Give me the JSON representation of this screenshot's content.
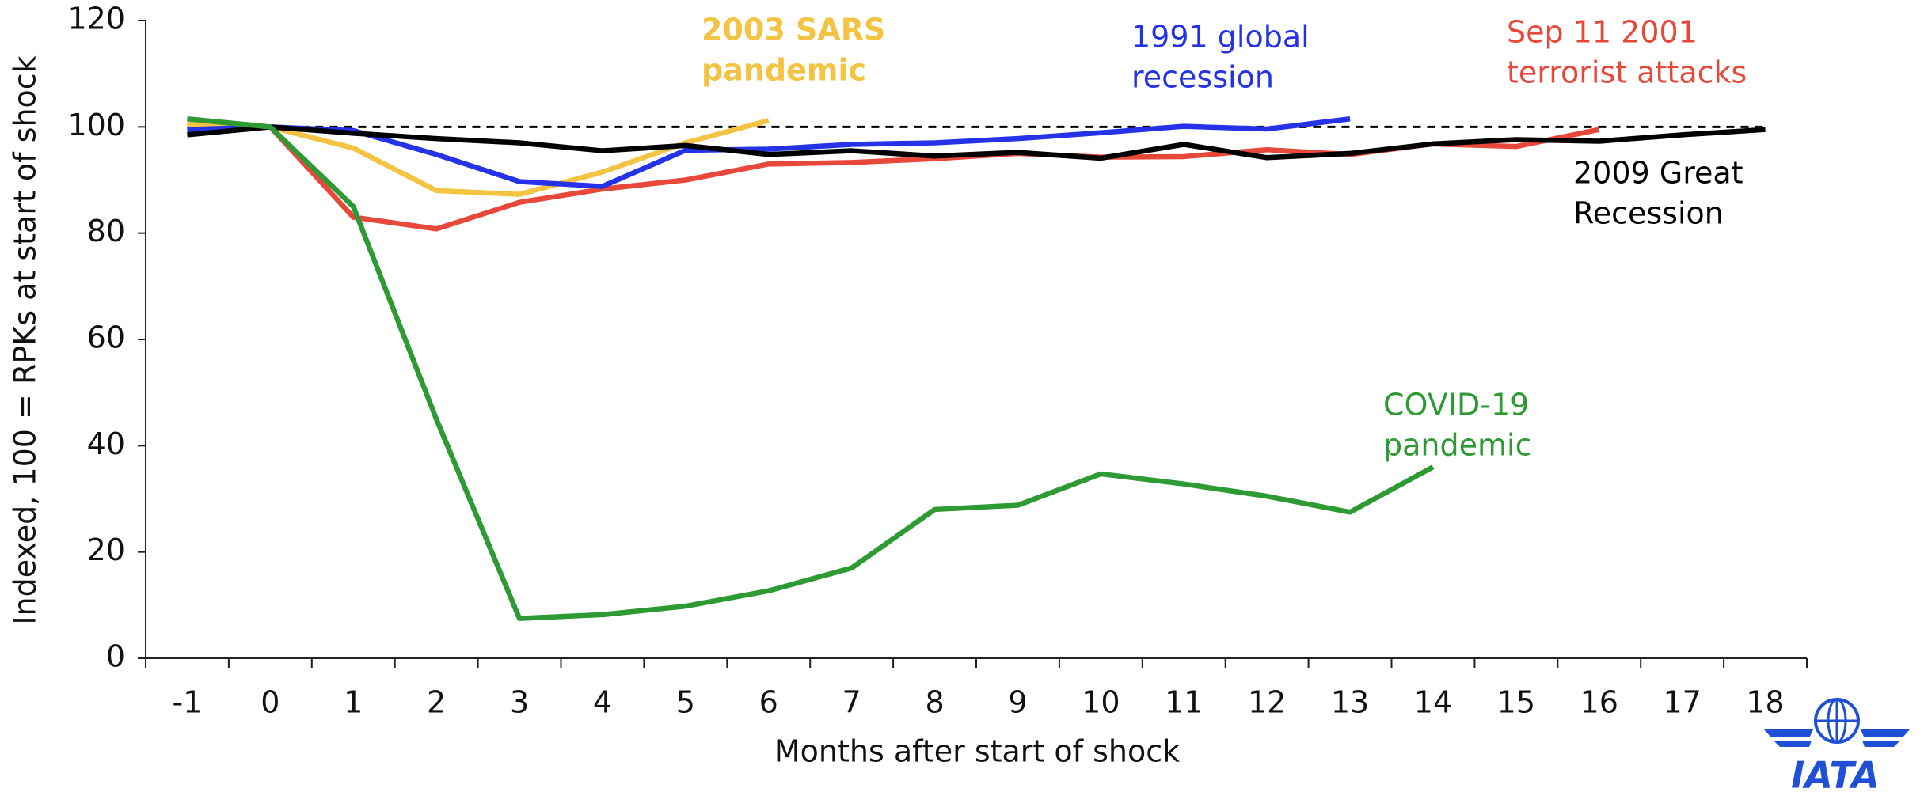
{
  "chart_data": {
    "type": "line",
    "x_label": "Months after start of shock",
    "y_label": "Indexed, 100 = RPKs at start of shock",
    "categories": [
      "-1",
      "0",
      "1",
      "2",
      "3",
      "4",
      "5",
      "6",
      "7",
      "8",
      "9",
      "10",
      "11",
      "12",
      "13",
      "14",
      "15",
      "16",
      "17",
      "18"
    ],
    "ylim": [
      0,
      120
    ],
    "yticks": [
      0,
      20,
      40,
      60,
      80,
      100,
      120
    ],
    "reference_line": 100,
    "series": [
      {
        "name_lines": [
          "Sep 11 2001",
          "terrorist attacks"
        ],
        "color": "#e8483a",
        "values": [
          100,
          100,
          83,
          80.8,
          85.8,
          88.3,
          90,
          93,
          93.3,
          94,
          95,
          94.3,
          94.4,
          95.7,
          94.8,
          96.8,
          96.3,
          99.5,
          null,
          null
        ]
      },
      {
        "name_lines": [
          "2003 SARS",
          "pandemic"
        ],
        "color": "#f5c342",
        "values": [
          100.5,
          100,
          96,
          88,
          87.3,
          91.5,
          97,
          101.2,
          null,
          null,
          null,
          null,
          null,
          null,
          null,
          null,
          null,
          null,
          null,
          null
        ]
      },
      {
        "name_lines": [
          "1991 global",
          "recession"
        ],
        "color": "#2433e8",
        "values": [
          99.5,
          100,
          99.3,
          94.8,
          89.7,
          88.8,
          95.6,
          95.8,
          96.7,
          97,
          97.8,
          98.9,
          100.1,
          99.6,
          101.5,
          null,
          null,
          null,
          null,
          null
        ]
      },
      {
        "name_lines": [
          "2009 Great",
          "Recession"
        ],
        "color": "#000000",
        "values": [
          98.5,
          100,
          98.8,
          97.8,
          97,
          95.5,
          96.5,
          94.8,
          95.5,
          94.5,
          95.2,
          94.1,
          96.7,
          94.2,
          95,
          96.8,
          97.6,
          97.3,
          98.5,
          99.5
        ]
      },
      {
        "name_lines": [
          "COVID-19",
          "pandemic"
        ],
        "color": "#2e9a33",
        "values": [
          101.5,
          100,
          85,
          45,
          7.5,
          8.2,
          9.8,
          12.7,
          17,
          28,
          28.8,
          34.7,
          32.8,
          30.5,
          27.5,
          36,
          null,
          null,
          null,
          null
        ]
      }
    ],
    "logo_text": "IATA"
  }
}
